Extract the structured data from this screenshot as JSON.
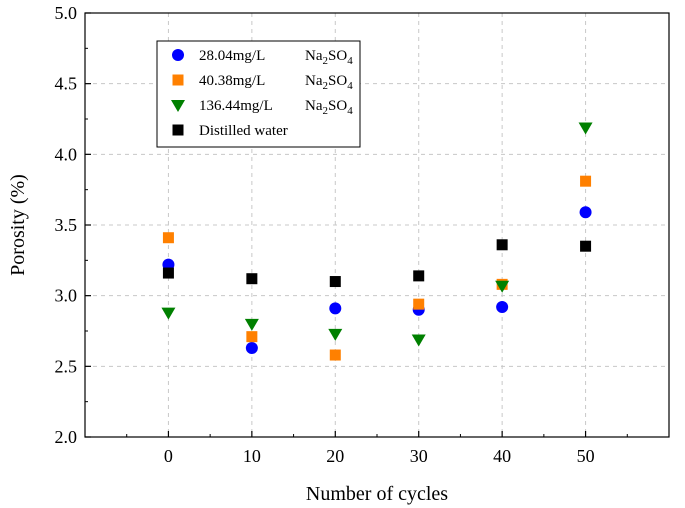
{
  "chart_data": {
    "type": "scatter",
    "title": "",
    "xlabel": "Number of cycles",
    "ylabel": "Porosity (%)",
    "xlim": [
      -10,
      60
    ],
    "ylim": [
      2.0,
      5.0
    ],
    "xticks": [
      0,
      10,
      20,
      30,
      40,
      50
    ],
    "xtick_labels": [
      "0",
      "10",
      "20",
      "30",
      "40",
      "50"
    ],
    "yticks": [
      2.0,
      2.5,
      3.0,
      3.5,
      4.0,
      4.5,
      5.0
    ],
    "ytick_labels": [
      "2.0",
      "2.5",
      "3.0",
      "3.5",
      "4.0",
      "4.5",
      "5.0"
    ],
    "grid": true,
    "legend_position": "top-left",
    "series": [
      {
        "name": "28.04mg/L Na2SO4",
        "legend_prefix": "28.04mg/L",
        "legend_formula": "Na",
        "legend_sub": "2",
        "legend_formula_tail": "SO",
        "legend_sub2": "4",
        "marker": "circle",
        "color": "#0000FF",
        "x": [
          0,
          10,
          20,
          30,
          40,
          50
        ],
        "y": [
          3.22,
          2.63,
          2.91,
          2.9,
          2.92,
          3.59
        ]
      },
      {
        "name": "40.38mg/L Na2SO4",
        "legend_prefix": "40.38mg/L",
        "legend_formula": "Na",
        "legend_sub": "2",
        "legend_formula_tail": "SO",
        "legend_sub2": "4",
        "marker": "square",
        "color": "#FF8000",
        "x": [
          0,
          10,
          20,
          30,
          40,
          50
        ],
        "y": [
          3.41,
          2.71,
          2.58,
          2.94,
          3.08,
          3.81
        ]
      },
      {
        "name": "136.44mg/L Na2SO4",
        "legend_prefix": "136.44mg/L",
        "legend_formula": "Na",
        "legend_sub": "2",
        "legend_formula_tail": "SO",
        "legend_sub2": "4",
        "marker": "triangle-down",
        "color": "#008000",
        "x": [
          0,
          10,
          20,
          30,
          40,
          50
        ],
        "y": [
          2.88,
          2.8,
          2.73,
          2.69,
          3.07,
          4.19
        ]
      },
      {
        "name": "Distilled water",
        "legend_prefix": "Distilled water",
        "legend_formula": "",
        "legend_sub": "",
        "legend_formula_tail": "",
        "legend_sub2": "",
        "marker": "square",
        "color": "#000000",
        "x": [
          0,
          10,
          20,
          30,
          40,
          50
        ],
        "y": [
          3.16,
          3.12,
          3.1,
          3.14,
          3.36,
          3.35
        ]
      }
    ]
  }
}
